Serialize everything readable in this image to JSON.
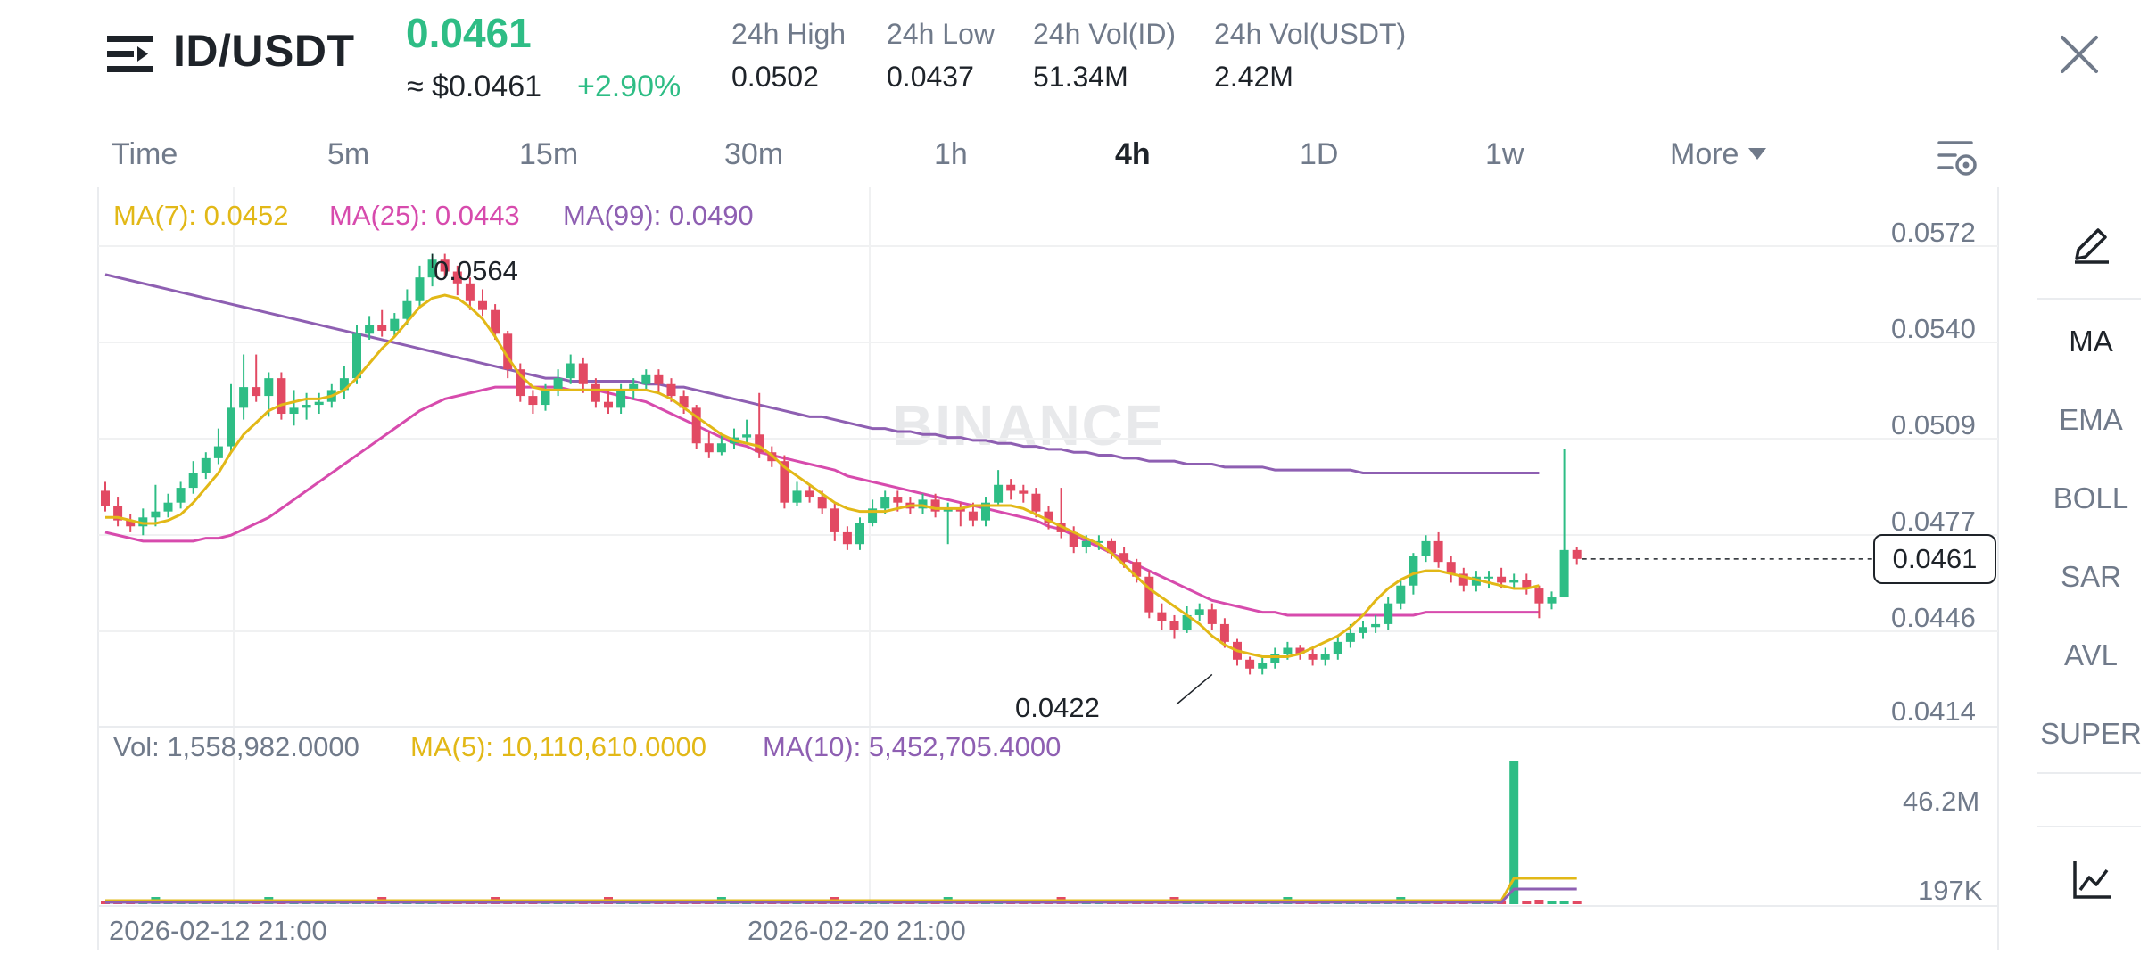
{
  "header": {
    "pair": "ID/USDT",
    "last_price": "0.0461",
    "approx_price": "≈ $0.0461",
    "change_pct": "+2.90%",
    "stats": [
      {
        "label": "24h High",
        "value": "0.0502"
      },
      {
        "label": "24h Low",
        "value": "0.0437"
      },
      {
        "label": "24h Vol(ID)",
        "value": "51.34M"
      },
      {
        "label": "24h Vol(USDT)",
        "value": "2.42M"
      }
    ]
  },
  "intervals": {
    "items": [
      "Time",
      "5m",
      "15m",
      "30m",
      "1h",
      "4h",
      "1D",
      "1w",
      "More"
    ],
    "active": "4h"
  },
  "indicators": {
    "ma7": "MA(7): 0.0452",
    "ma25": "MA(25): 0.0443",
    "ma99": "MA(99): 0.0490",
    "vol": "Vol: 1,558,982.0000",
    "vol_ma5": "MA(5): 10,110,610.0000",
    "vol_ma10": "MA(10): 5,452,705.4000"
  },
  "colors": {
    "up": "#2ebd85",
    "down": "#e24a63",
    "ma7": "#e2b817",
    "ma25": "#d74bad",
    "ma99": "#8e5fb2"
  },
  "watermark": "BINANCE",
  "side_toolbar": {
    "items": [
      "MA",
      "EMA",
      "BOLL",
      "SAR",
      "AVL",
      "SUPER"
    ],
    "active": "MA",
    "top_icon": "pencil-icon",
    "bottom_icon": "chart-icon"
  },
  "chart_data": {
    "type": "candlestick",
    "price_ticks": [
      "0.0572",
      "0.0540",
      "0.0509",
      "0.0477",
      "0.0446",
      "0.0414"
    ],
    "volume_ticks": [
      "46.2M",
      "197K"
    ],
    "current_price_label": "0.0461",
    "high_marker": "0.0564",
    "low_marker": "0.0422",
    "date_ticks": [
      "2026-02-12 21:00",
      "2026-02-20 21:00"
    ],
    "ylim": [
      0.0414,
      0.0572
    ],
    "candles": [
      [
        0.0484,
        0.0479,
        0.0487,
        0.0477
      ],
      [
        0.0479,
        0.0474,
        0.0482,
        0.0472
      ],
      [
        0.0474,
        0.0472,
        0.0476,
        0.047
      ],
      [
        0.0472,
        0.0475,
        0.0478,
        0.0469
      ],
      [
        0.0475,
        0.0477,
        0.0486,
        0.0472
      ],
      [
        0.0477,
        0.048,
        0.0483,
        0.0475
      ],
      [
        0.048,
        0.0485,
        0.0487,
        0.0478
      ],
      [
        0.0485,
        0.049,
        0.0494,
        0.0483
      ],
      [
        0.049,
        0.0495,
        0.0497,
        0.0488
      ],
      [
        0.0495,
        0.0499,
        0.0505,
        0.0493
      ],
      [
        0.0499,
        0.0512,
        0.052,
        0.0497
      ],
      [
        0.0512,
        0.0519,
        0.053,
        0.0508
      ],
      [
        0.0519,
        0.0516,
        0.053,
        0.0514
      ],
      [
        0.0516,
        0.0522,
        0.0524,
        0.0509
      ],
      [
        0.0522,
        0.051,
        0.0524,
        0.0508
      ],
      [
        0.051,
        0.0512,
        0.0518,
        0.0506
      ],
      [
        0.0512,
        0.0513,
        0.0517,
        0.0508
      ],
      [
        0.0513,
        0.0514,
        0.0517,
        0.051
      ],
      [
        0.0514,
        0.0518,
        0.052,
        0.0512
      ],
      [
        0.0518,
        0.0522,
        0.0526,
        0.0515
      ],
      [
        0.0522,
        0.0537,
        0.054,
        0.052
      ],
      [
        0.0537,
        0.054,
        0.0543,
        0.0535
      ],
      [
        0.054,
        0.0538,
        0.0545,
        0.0536
      ],
      [
        0.0538,
        0.0542,
        0.0544,
        0.0536
      ],
      [
        0.0542,
        0.0548,
        0.0552,
        0.054
      ],
      [
        0.0548,
        0.0556,
        0.056,
        0.0546
      ],
      [
        0.0556,
        0.0562,
        0.0564,
        0.0553
      ],
      [
        0.0562,
        0.0558,
        0.0564,
        0.0556
      ],
      [
        0.0558,
        0.0554,
        0.056,
        0.055
      ],
      [
        0.0554,
        0.0548,
        0.0556,
        0.0545
      ],
      [
        0.0548,
        0.0545,
        0.0552,
        0.0543
      ],
      [
        0.0545,
        0.0537,
        0.0547,
        0.0535
      ],
      [
        0.0537,
        0.0525,
        0.0538,
        0.0522
      ],
      [
        0.0525,
        0.0516,
        0.0527,
        0.0514
      ],
      [
        0.0516,
        0.0513,
        0.0518,
        0.051
      ],
      [
        0.0513,
        0.0518,
        0.052,
        0.0511
      ],
      [
        0.0518,
        0.0522,
        0.0525,
        0.0516
      ],
      [
        0.0522,
        0.0527,
        0.053,
        0.052
      ],
      [
        0.0527,
        0.052,
        0.0529,
        0.0517
      ],
      [
        0.052,
        0.0514,
        0.0522,
        0.0512
      ],
      [
        0.0514,
        0.0512,
        0.0518,
        0.051
      ],
      [
        0.0512,
        0.0518,
        0.052,
        0.051
      ],
      [
        0.0518,
        0.052,
        0.0522,
        0.0515
      ],
      [
        0.052,
        0.0523,
        0.0525,
        0.0518
      ],
      [
        0.0523,
        0.052,
        0.0525,
        0.0517
      ],
      [
        0.052,
        0.0516,
        0.0522,
        0.0514
      ],
      [
        0.0516,
        0.0512,
        0.0518,
        0.051
      ],
      [
        0.0512,
        0.05,
        0.0513,
        0.0498
      ],
      [
        0.05,
        0.0497,
        0.0504,
        0.0495
      ],
      [
        0.0497,
        0.05,
        0.0503,
        0.0496
      ],
      [
        0.05,
        0.0502,
        0.0505,
        0.0498
      ],
      [
        0.0502,
        0.0503,
        0.0508,
        0.05
      ],
      [
        0.0503,
        0.0497,
        0.0517,
        0.0495
      ],
      [
        0.0497,
        0.0494,
        0.0499,
        0.0492
      ],
      [
        0.0494,
        0.048,
        0.0496,
        0.0478
      ],
      [
        0.048,
        0.0484,
        0.0487,
        0.0479
      ],
      [
        0.0484,
        0.0482,
        0.0486,
        0.048
      ],
      [
        0.0482,
        0.0478,
        0.0484,
        0.0476
      ],
      [
        0.0478,
        0.047,
        0.048,
        0.0467
      ],
      [
        0.047,
        0.0466,
        0.0472,
        0.0464
      ],
      [
        0.0466,
        0.0473,
        0.0475,
        0.0464
      ],
      [
        0.0473,
        0.0478,
        0.0481,
        0.0472
      ],
      [
        0.0478,
        0.0482,
        0.0484,
        0.0476
      ],
      [
        0.0482,
        0.048,
        0.0484,
        0.0477
      ],
      [
        0.048,
        0.0478,
        0.0482,
        0.0476
      ],
      [
        0.0478,
        0.0481,
        0.0483,
        0.0476
      ],
      [
        0.0481,
        0.0477,
        0.0483,
        0.0475
      ],
      [
        0.0477,
        0.0478,
        0.048,
        0.0466
      ],
      [
        0.0478,
        0.0477,
        0.048,
        0.0472
      ],
      [
        0.0477,
        0.0474,
        0.048,
        0.0472
      ],
      [
        0.0474,
        0.048,
        0.0482,
        0.0472
      ],
      [
        0.048,
        0.0486,
        0.0491,
        0.0479
      ],
      [
        0.0486,
        0.0484,
        0.0488,
        0.0481
      ],
      [
        0.0484,
        0.0483,
        0.0486,
        0.048
      ],
      [
        0.0483,
        0.0477,
        0.0485,
        0.0475
      ],
      [
        0.0477,
        0.0473,
        0.0479,
        0.0471
      ],
      [
        0.0473,
        0.047,
        0.0485,
        0.0468
      ],
      [
        0.047,
        0.0465,
        0.0472,
        0.0463
      ],
      [
        0.0465,
        0.0467,
        0.0469,
        0.0463
      ],
      [
        0.0467,
        0.0467,
        0.0469,
        0.0464
      ],
      [
        0.0467,
        0.0463,
        0.0468,
        0.0461
      ],
      [
        0.0463,
        0.046,
        0.0465,
        0.0458
      ],
      [
        0.046,
        0.0455,
        0.0461,
        0.0453
      ],
      [
        0.0455,
        0.0443,
        0.0457,
        0.0441
      ],
      [
        0.0443,
        0.044,
        0.0446,
        0.0437
      ],
      [
        0.044,
        0.0437,
        0.0442,
        0.0434
      ],
      [
        0.0437,
        0.0442,
        0.0445,
        0.0436
      ],
      [
        0.0442,
        0.0444,
        0.0446,
        0.044
      ],
      [
        0.0444,
        0.0439,
        0.0446,
        0.0437
      ],
      [
        0.0439,
        0.0433,
        0.0441,
        0.0431
      ],
      [
        0.0433,
        0.0427,
        0.0434,
        0.0425
      ],
      [
        0.0427,
        0.0424,
        0.0428,
        0.0422
      ],
      [
        0.0424,
        0.0426,
        0.0428,
        0.0422
      ],
      [
        0.0426,
        0.0429,
        0.0431,
        0.0424
      ],
      [
        0.0429,
        0.0431,
        0.0433,
        0.0427
      ],
      [
        0.0431,
        0.0429,
        0.0432,
        0.0427
      ],
      [
        0.0429,
        0.0427,
        0.0431,
        0.0425
      ],
      [
        0.0427,
        0.0429,
        0.0431,
        0.0425
      ],
      [
        0.0429,
        0.0433,
        0.0435,
        0.0427
      ],
      [
        0.0433,
        0.0436,
        0.0439,
        0.0431
      ],
      [
        0.0436,
        0.0438,
        0.044,
        0.0434
      ],
      [
        0.0438,
        0.0439,
        0.0442,
        0.0436
      ],
      [
        0.0439,
        0.0446,
        0.0448,
        0.0437
      ],
      [
        0.0446,
        0.0452,
        0.0454,
        0.0444
      ],
      [
        0.0452,
        0.0462,
        0.0463,
        0.0449
      ],
      [
        0.0462,
        0.0467,
        0.0469,
        0.046
      ],
      [
        0.0467,
        0.046,
        0.047,
        0.0458
      ],
      [
        0.046,
        0.0456,
        0.0462,
        0.0453
      ],
      [
        0.0456,
        0.0452,
        0.0458,
        0.045
      ],
      [
        0.0452,
        0.0455,
        0.0457,
        0.045
      ],
      [
        0.0455,
        0.0455,
        0.0457,
        0.0451
      ],
      [
        0.0455,
        0.0453,
        0.0458,
        0.0451
      ],
      [
        0.0453,
        0.0454,
        0.0456,
        0.0451
      ],
      [
        0.0454,
        0.0451,
        0.0456,
        0.0449
      ],
      [
        0.0451,
        0.0446,
        0.0452,
        0.0441
      ],
      [
        0.0446,
        0.0448,
        0.045,
        0.0444
      ],
      [
        0.0448,
        0.0464,
        0.0498,
        0.0448
      ],
      [
        0.0464,
        0.0461,
        0.0465,
        0.0459
      ]
    ],
    "ma7": [
      0.0475,
      0.0475,
      0.0474,
      0.0473,
      0.0473,
      0.0474,
      0.0476,
      0.048,
      0.0485,
      0.049,
      0.0497,
      0.0503,
      0.0507,
      0.0511,
      0.0513,
      0.0514,
      0.0515,
      0.0515,
      0.0516,
      0.0518,
      0.0522,
      0.0527,
      0.0532,
      0.0536,
      0.0541,
      0.0546,
      0.0549,
      0.055,
      0.0549,
      0.0546,
      0.0542,
      0.0536,
      0.0529,
      0.0523,
      0.0519,
      0.0518,
      0.0518,
      0.0518,
      0.0518,
      0.0518,
      0.0518,
      0.0518,
      0.0518,
      0.0518,
      0.0517,
      0.0515,
      0.0512,
      0.0509,
      0.0506,
      0.0503,
      0.0501,
      0.05,
      0.0499,
      0.0496,
      0.0492,
      0.0489,
      0.0486,
      0.0483,
      0.048,
      0.0478,
      0.0477,
      0.0477,
      0.0477,
      0.0478,
      0.0479,
      0.0479,
      0.0478,
      0.0478,
      0.0478,
      0.0479,
      0.0479,
      0.0479,
      0.0479,
      0.0478,
      0.0476,
      0.0474,
      0.0472,
      0.047,
      0.0468,
      0.0466,
      0.0463,
      0.0459,
      0.0455,
      0.0451,
      0.0448,
      0.0445,
      0.0442,
      0.0439,
      0.0435,
      0.0432,
      0.043,
      0.0429,
      0.0428,
      0.0428,
      0.0428,
      0.0429,
      0.0431,
      0.0433,
      0.0435,
      0.0438,
      0.0442,
      0.0447,
      0.0451,
      0.0454,
      0.0456,
      0.0457,
      0.0457,
      0.0456,
      0.0455,
      0.0454,
      0.0453,
      0.0452,
      0.0451,
      0.0451,
      0.0452
    ],
    "ma25": [
      0.047,
      0.0469,
      0.0468,
      0.0467,
      0.0467,
      0.0467,
      0.0467,
      0.0467,
      0.0468,
      0.0468,
      0.0469,
      0.0471,
      0.0473,
      0.0475,
      0.0478,
      0.0481,
      0.0484,
      0.0487,
      0.049,
      0.0493,
      0.0496,
      0.0499,
      0.0502,
      0.0505,
      0.0508,
      0.0511,
      0.0513,
      0.0515,
      0.0516,
      0.0517,
      0.0518,
      0.0519,
      0.0519,
      0.0519,
      0.0519,
      0.0519,
      0.0519,
      0.0518,
      0.0518,
      0.0518,
      0.0517,
      0.0516,
      0.0515,
      0.0514,
      0.0512,
      0.051,
      0.0508,
      0.0506,
      0.0504,
      0.0502,
      0.05,
      0.0499,
      0.0497,
      0.0496,
      0.0495,
      0.0494,
      0.0493,
      0.0492,
      0.0491,
      0.0489,
      0.0488,
      0.0487,
      0.0486,
      0.0485,
      0.0484,
      0.0483,
      0.0482,
      0.0481,
      0.048,
      0.0479,
      0.0478,
      0.0477,
      0.0476,
      0.0475,
      0.0474,
      0.0472,
      0.0471,
      0.0469,
      0.0467,
      0.0465,
      0.0463,
      0.0461,
      0.0459,
      0.0457,
      0.0455,
      0.0453,
      0.0451,
      0.0449,
      0.0447,
      0.0446,
      0.0445,
      0.0444,
      0.0443,
      0.0443,
      0.0442,
      0.0442,
      0.0442,
      0.0442,
      0.0442,
      0.0442,
      0.0442,
      0.0442,
      0.0442,
      0.0442,
      0.0442,
      0.0443,
      0.0443,
      0.0443,
      0.0443,
      0.0443,
      0.0443,
      0.0443,
      0.0443,
      0.0443,
      0.0443
    ],
    "ma99": [
      0.0557,
      0.0556,
      0.0555,
      0.0554,
      0.0553,
      0.0552,
      0.0551,
      0.055,
      0.0549,
      0.0548,
      0.0547,
      0.0546,
      0.0545,
      0.0544,
      0.0543,
      0.0542,
      0.0541,
      0.054,
      0.0539,
      0.0538,
      0.0537,
      0.0536,
      0.0535,
      0.0534,
      0.0533,
      0.0532,
      0.0531,
      0.053,
      0.0529,
      0.0528,
      0.0527,
      0.0526,
      0.0525,
      0.0524,
      0.0523,
      0.0522,
      0.0522,
      0.0521,
      0.0521,
      0.0521,
      0.0521,
      0.0521,
      0.0521,
      0.052,
      0.052,
      0.0519,
      0.0519,
      0.0518,
      0.0517,
      0.0516,
      0.0515,
      0.0514,
      0.0513,
      0.0512,
      0.0511,
      0.051,
      0.0509,
      0.0509,
      0.0508,
      0.0507,
      0.0506,
      0.0505,
      0.0505,
      0.0504,
      0.0504,
      0.0503,
      0.0503,
      0.0502,
      0.0502,
      0.0501,
      0.0501,
      0.05,
      0.05,
      0.0499,
      0.0499,
      0.0498,
      0.0498,
      0.0497,
      0.0497,
      0.0496,
      0.0496,
      0.0495,
      0.0495,
      0.0494,
      0.0494,
      0.0494,
      0.0493,
      0.0493,
      0.0493,
      0.0492,
      0.0492,
      0.0492,
      0.0492,
      0.0491,
      0.0491,
      0.0491,
      0.0491,
      0.0491,
      0.0491,
      0.0491,
      0.049,
      0.049,
      0.049,
      0.049,
      0.049,
      0.049,
      0.049,
      0.049,
      0.049,
      0.049,
      0.049,
      0.049,
      0.049,
      0.049,
      0.049
    ],
    "volume_spike_index": 112
  }
}
